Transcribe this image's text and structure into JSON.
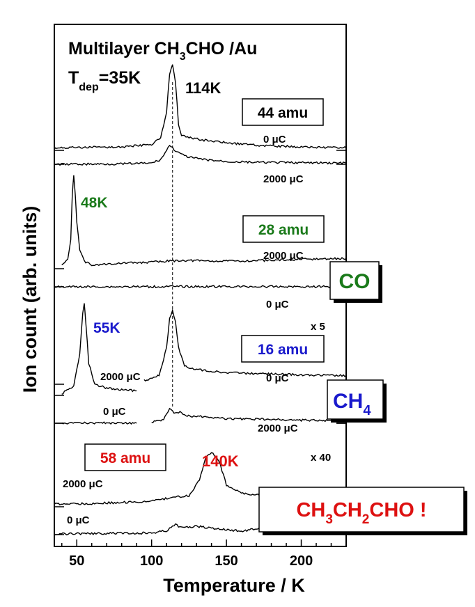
{
  "chart_data": {
    "type": "line",
    "title": "Multilayer CH3CHO /Au",
    "title_parts": {
      "a": "Multilayer CH",
      "b": "3",
      "c": "CHO /Au"
    },
    "tdep_parts": {
      "a": "T",
      "b": "dep",
      "c": "=35K"
    },
    "xlabel": "Temperature / K",
    "ylabel": "Ion count (arb. units)",
    "xlim": [
      35,
      230
    ],
    "xticks": [
      "50",
      "100",
      "150",
      "200"
    ],
    "reference_line_x": 114,
    "grid": false,
    "panels": [
      {
        "mass": "44 amu",
        "color": "#000000",
        "peak_label": "114K",
        "series": [
          {
            "name": "0 μC",
            "x": [
              35,
              80,
              100,
              106,
              110,
              112,
              114,
              116,
              118,
              120,
              125,
              135,
              150,
              170,
              200,
              230
            ],
            "y": [
              0.03,
              0.04,
              0.07,
              0.15,
              0.45,
              0.9,
              1.0,
              0.8,
              0.3,
              0.17,
              0.15,
              0.12,
              0.09,
              0.06,
              0.04,
              0.03
            ]
          },
          {
            "name": "2000 μC",
            "x": [
              35,
              80,
              100,
              106,
              110,
              112,
              114,
              116,
              118,
              120,
              125,
              135,
              150,
              170,
              200,
              230
            ],
            "y": [
              0.0,
              0.01,
              0.03,
              0.12,
              0.35,
              0.5,
              0.42,
              0.35,
              0.3,
              0.25,
              0.18,
              0.12,
              0.07,
              0.05,
              0.04,
              0.03
            ]
          }
        ]
      },
      {
        "mass": "28 amu",
        "color": "#1a7a1a",
        "peak_label": "48K",
        "box_label": "CO",
        "series": [
          {
            "name": "2000 μC",
            "x": [
              40,
              44,
              46,
              47,
              48,
              49,
              50,
              52,
              55,
              60,
              80,
              100,
              120,
              150,
              180,
              200,
              230
            ],
            "y": [
              0.05,
              0.1,
              0.3,
              0.8,
              1.0,
              0.8,
              0.5,
              0.2,
              0.08,
              0.04,
              0.06,
              0.07,
              0.09,
              0.08,
              0.09,
              0.1,
              0.11
            ]
          },
          {
            "name": "0 μC",
            "x": [
              35,
              60,
              100,
              110,
              114,
              120,
              150,
              200,
              230
            ],
            "y": [
              0.0,
              0.01,
              0.02,
              0.04,
              0.05,
              0.04,
              0.03,
              0.03,
              0.03
            ]
          }
        ]
      },
      {
        "mass": "16 amu",
        "color": "#1a1acc",
        "peak_label": "55K",
        "box_label": "CH4",
        "box_parts": {
          "a": "CH",
          "b": "4"
        },
        "multiplier": "x 5",
        "series": [
          {
            "name": "2000 μC",
            "x": [
              40,
              48,
              52,
              54,
              55,
              56,
              58,
              62,
              70,
              80,
              90
            ],
            "y": [
              0.02,
              0.1,
              0.45,
              0.9,
              1.0,
              0.8,
              0.35,
              0.12,
              0.08,
              0.06,
              0.05
            ]
          },
          {
            "name": "0 μC",
            "x": [
              95,
              105,
              110,
              112,
              114,
              116,
              118,
              122,
              130,
              150,
              180,
              200,
              230
            ],
            "y": [
              0.05,
              0.12,
              0.5,
              0.9,
              1.0,
              0.85,
              0.5,
              0.25,
              0.2,
              0.16,
              0.14,
              0.13,
              0.12
            ]
          },
          {
            "name": "0 μC",
            "x": [
              40,
              60,
              70,
              80,
              90
            ],
            "y": [
              0.0,
              0.02,
              0.03,
              0.03,
              0.02
            ]
          },
          {
            "name": "2000 μC",
            "x": [
              100,
              108,
              112,
              114,
              116,
              120,
              122,
              130,
              150,
              180,
              200,
              230
            ],
            "y": [
              0.02,
              0.1,
              0.4,
              0.3,
              0.25,
              0.3,
              0.2,
              0.18,
              0.12,
              0.1,
              0.08,
              0.07
            ]
          }
        ]
      },
      {
        "mass": "58 amu",
        "color": "#dd1111",
        "peak_label": "140K",
        "box_label": "CH3CH2CHO !",
        "box_parts": {
          "a": "CH",
          "b": "3",
          "c": "CH",
          "d": "2",
          "e": "CHO !"
        },
        "multiplier": "x 40",
        "series": [
          {
            "name": "2000 μC",
            "x": [
              35,
              60,
              80,
              100,
              115,
              125,
              132,
              136,
              140,
              145,
              150,
              160,
              175,
              200,
              230
            ],
            "y": [
              0.05,
              0.06,
              0.08,
              0.1,
              0.18,
              0.2,
              0.5,
              0.9,
              1.0,
              0.85,
              0.4,
              0.25,
              0.2,
              0.15,
              0.1
            ]
          },
          {
            "name": "0 μC",
            "x": [
              35,
              60,
              80,
              100,
              110,
              116,
              120,
              130,
              140,
              150,
              160,
              170,
              185,
              200,
              230
            ],
            "y": [
              0.02,
              0.03,
              0.04,
              0.05,
              0.12,
              0.3,
              0.2,
              0.25,
              0.2,
              0.15,
              0.1,
              0.18,
              0.12,
              0.08,
              0.06
            ]
          }
        ]
      }
    ]
  }
}
